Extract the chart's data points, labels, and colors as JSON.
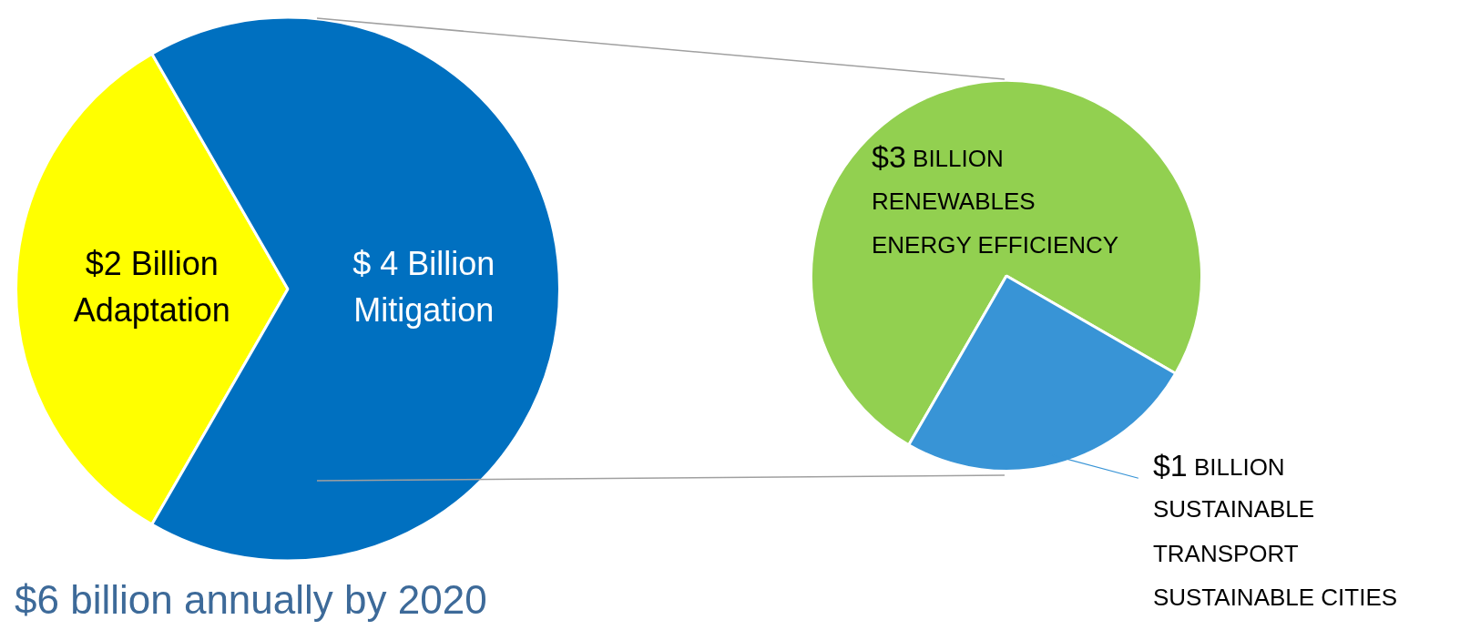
{
  "chart_data": [
    {
      "type": "pie",
      "title": "$6 billion annually by 2020",
      "categories": [
        "Adaptation",
        "Mitigation"
      ],
      "values": [
        2,
        4
      ],
      "value_labels": [
        "$2 Billion",
        "$ 4 Billion"
      ],
      "colors": [
        "#ffff00",
        "#0070c0"
      ]
    },
    {
      "type": "pie",
      "categories": [
        "RENEWABLES\nENERGY EFFICIENCY",
        "SUSTAINABLE\nTRANSPORT\nSUSTAINABLE CITIES"
      ],
      "values": [
        3,
        1
      ],
      "value_labels": [
        "$3 BILLION",
        "$1 BILLION"
      ],
      "colors": [
        "#92d050",
        "#3894d6"
      ]
    }
  ]
}
